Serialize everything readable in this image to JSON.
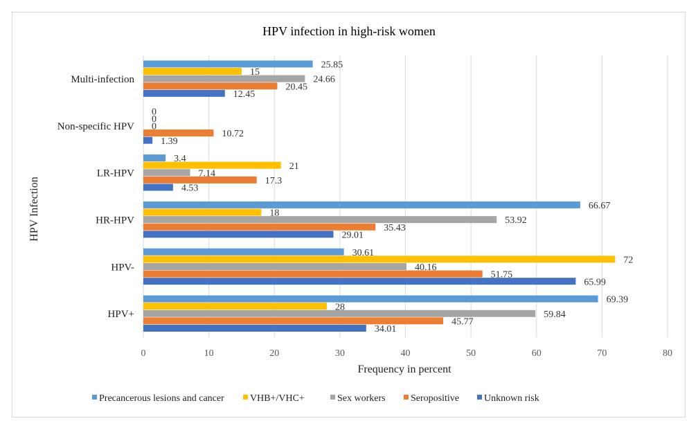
{
  "chart_data": {
    "type": "bar",
    "orientation": "horizontal",
    "title": "HPV infection in high-risk women",
    "xlabel": "Frequency in percent",
    "ylabel": "HPV Infection",
    "xlim": [
      0,
      80
    ],
    "xticks": [
      0,
      10,
      20,
      30,
      40,
      50,
      60,
      70,
      80
    ],
    "categories": [
      "Multi-infection",
      "Non-specific HPV",
      "LR-HPV",
      "HR-HPV",
      "HPV-",
      "HPV+"
    ],
    "series": [
      {
        "name": "Precancerous lesions and cancer",
        "color": "#5B9BD5",
        "values": [
          25.85,
          0,
          3.4,
          66.67,
          30.61,
          69.39
        ],
        "labels": [
          "25.85",
          "0",
          "3.4",
          "66.67",
          "30.61",
          "69.39"
        ]
      },
      {
        "name": "VHB+/VHC+",
        "color": "#FFC000",
        "values": [
          15,
          0,
          21,
          18,
          72,
          28
        ],
        "labels": [
          "15",
          "0",
          "21",
          "18",
          "72",
          "28"
        ]
      },
      {
        "name": "Sex workers",
        "color": "#A5A5A5",
        "values": [
          24.66,
          0,
          7.14,
          53.92,
          40.16,
          59.84
        ],
        "labels": [
          "24.66",
          "0",
          "7.14",
          "53.92",
          "40.16",
          "59.84"
        ]
      },
      {
        "name": "Seropositive",
        "color": "#ED7D31",
        "values": [
          20.45,
          10.72,
          17.3,
          35.43,
          51.75,
          45.77
        ],
        "labels": [
          "20.45",
          "10.72",
          "17.3",
          "35.43",
          "51.75",
          "45.77"
        ]
      },
      {
        "name": "Unknown risk",
        "color": "#4472C4",
        "values": [
          12.45,
          1.39,
          4.53,
          29.01,
          65.99,
          34.01
        ],
        "labels": [
          "12.45",
          "1.39",
          "4.53",
          "29.01",
          "65.99",
          "34.01"
        ]
      }
    ],
    "grid": true,
    "legend_position": "bottom"
  }
}
